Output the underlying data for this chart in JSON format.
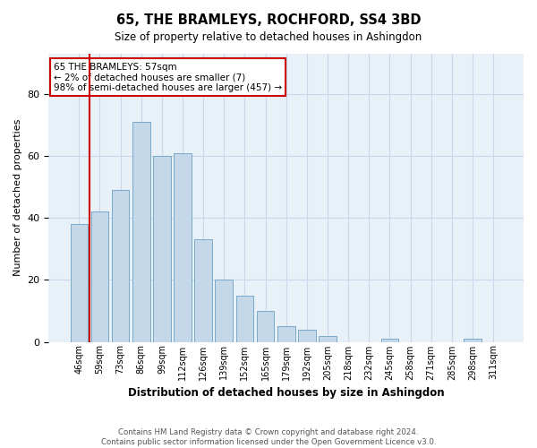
{
  "title": "65, THE BRAMLEYS, ROCHFORD, SS4 3BD",
  "subtitle": "Size of property relative to detached houses in Ashingdon",
  "xlabel": "Distribution of detached houses by size in Ashingdon",
  "ylabel": "Number of detached properties",
  "categories": [
    "46sqm",
    "59sqm",
    "73sqm",
    "86sqm",
    "99sqm",
    "112sqm",
    "126sqm",
    "139sqm",
    "152sqm",
    "165sqm",
    "179sqm",
    "192sqm",
    "205sqm",
    "218sqm",
    "232sqm",
    "245sqm",
    "258sqm",
    "271sqm",
    "285sqm",
    "298sqm",
    "311sqm"
  ],
  "values": [
    38,
    42,
    49,
    71,
    60,
    61,
    33,
    20,
    15,
    10,
    5,
    4,
    2,
    0,
    0,
    1,
    0,
    0,
    0,
    1,
    0
  ],
  "bar_color": "#c5d8ea",
  "bar_edge_color": "#7aaac8",
  "marker_color": "#cc0000",
  "annotation_text": "65 THE BRAMLEYS: 57sqm\n← 2% of detached houses are smaller (7)\n98% of semi-detached houses are larger (457) →",
  "footer1": "Contains HM Land Registry data © Crown copyright and database right 2024.",
  "footer2": "Contains public sector information licensed under the Open Government Licence v3.0.",
  "ylim": [
    0,
    93
  ],
  "ax_facecolor": "#e8f0f8",
  "background_color": "#ffffff",
  "grid_color": "#c8d8e8"
}
